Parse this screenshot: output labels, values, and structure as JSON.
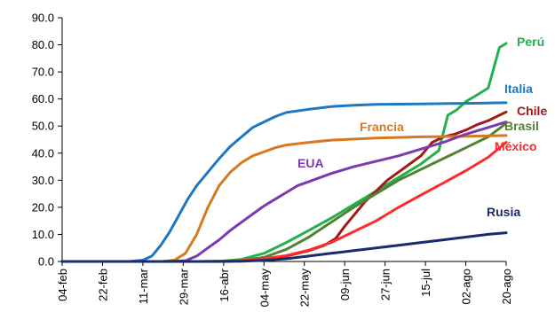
{
  "chart_data": {
    "type": "line",
    "title": "",
    "xlabel": "",
    "ylabel": "",
    "ylim": [
      0,
      90
    ],
    "yticks": [
      "0.0",
      "10.0",
      "20.0",
      "30.0",
      "40.0",
      "50.0",
      "60.0",
      "70.0",
      "80.0",
      "90.0"
    ],
    "x_tick_labels": [
      "04-feb",
      "22-feb",
      "11-mar",
      "29-mar",
      "16-abr",
      "04-may",
      "22-may",
      "09-jun",
      "27-jun",
      "15-jul",
      "02-ago",
      "20-ago"
    ],
    "x_days": [
      0,
      18,
      36,
      54,
      72,
      90,
      108,
      126,
      144,
      162,
      180,
      198
    ],
    "grid": false,
    "legend": "direct labels at line ends",
    "series": [
      {
        "name": "Perú",
        "color": "#22b14c",
        "label_color": "#22b14c",
        "points": [
          [
            0,
            0
          ],
          [
            60,
            0
          ],
          [
            72,
            0.2
          ],
          [
            80,
            0.8
          ],
          [
            90,
            3
          ],
          [
            100,
            7
          ],
          [
            110,
            11.5
          ],
          [
            120,
            16
          ],
          [
            130,
            21
          ],
          [
            140,
            26
          ],
          [
            150,
            31
          ],
          [
            160,
            36
          ],
          [
            168,
            41
          ],
          [
            172,
            54
          ],
          [
            176,
            56
          ],
          [
            180,
            59
          ],
          [
            185,
            61.5
          ],
          [
            190,
            64
          ],
          [
            195,
            79
          ],
          [
            198,
            80.5
          ]
        ]
      },
      {
        "name": "Italia",
        "color": "#1f77c0",
        "label_color": "#1f77c0",
        "points": [
          [
            0,
            0
          ],
          [
            30,
            0
          ],
          [
            36,
            0.5
          ],
          [
            40,
            2
          ],
          [
            44,
            6
          ],
          [
            48,
            11
          ],
          [
            52,
            17
          ],
          [
            56,
            23
          ],
          [
            60,
            28
          ],
          [
            65,
            33
          ],
          [
            70,
            38
          ],
          [
            75,
            42.5
          ],
          [
            80,
            46
          ],
          [
            85,
            49.5
          ],
          [
            90,
            51.5
          ],
          [
            95,
            53.5
          ],
          [
            100,
            55
          ],
          [
            110,
            56.2
          ],
          [
            120,
            57.2
          ],
          [
            130,
            57.7
          ],
          [
            140,
            58
          ],
          [
            160,
            58.2
          ],
          [
            180,
            58.4
          ],
          [
            198,
            58.6
          ]
        ]
      },
      {
        "name": "Chile",
        "color": "#a11a1a",
        "label_color": "#a11a1a",
        "points": [
          [
            0,
            0
          ],
          [
            70,
            0
          ],
          [
            80,
            0.2
          ],
          [
            90,
            0.8
          ],
          [
            100,
            2
          ],
          [
            110,
            4
          ],
          [
            117,
            6
          ],
          [
            122,
            8.5
          ],
          [
            126,
            13
          ],
          [
            130,
            17
          ],
          [
            135,
            22
          ],
          [
            140,
            26
          ],
          [
            145,
            30
          ],
          [
            150,
            33
          ],
          [
            155,
            36
          ],
          [
            160,
            39
          ],
          [
            165,
            44
          ],
          [
            170,
            46
          ],
          [
            175,
            47
          ],
          [
            180,
            48.5
          ],
          [
            185,
            50.5
          ],
          [
            190,
            52
          ],
          [
            198,
            55.2
          ]
        ]
      },
      {
        "name": "Brasil",
        "color": "#548235",
        "label_color": "#548235",
        "points": [
          [
            0,
            0
          ],
          [
            70,
            0
          ],
          [
            80,
            0.3
          ],
          [
            90,
            1.5
          ],
          [
            100,
            4.5
          ],
          [
            110,
            9
          ],
          [
            120,
            14.5
          ],
          [
            130,
            20
          ],
          [
            140,
            25
          ],
          [
            150,
            30
          ],
          [
            160,
            34
          ],
          [
            170,
            38
          ],
          [
            180,
            42
          ],
          [
            190,
            46
          ],
          [
            198,
            51
          ]
        ]
      },
      {
        "name": "Francia",
        "color": "#d67a1f",
        "label_color": "#d67a1f",
        "points": [
          [
            0,
            0
          ],
          [
            45,
            0
          ],
          [
            50,
            0.5
          ],
          [
            55,
            3
          ],
          [
            60,
            10
          ],
          [
            65,
            20
          ],
          [
            70,
            28
          ],
          [
            75,
            33
          ],
          [
            80,
            36.5
          ],
          [
            85,
            39
          ],
          [
            90,
            40.5
          ],
          [
            95,
            42
          ],
          [
            100,
            43
          ],
          [
            110,
            44
          ],
          [
            120,
            44.8
          ],
          [
            140,
            45.6
          ],
          [
            160,
            46
          ],
          [
            180,
            46.2
          ],
          [
            198,
            46.5
          ]
        ]
      },
      {
        "name": "México",
        "color": "#ff2a2a",
        "label_color": "#ff2a2a",
        "points": [
          [
            0,
            0
          ],
          [
            70,
            0
          ],
          [
            80,
            0.3
          ],
          [
            90,
            1
          ],
          [
            100,
            2.2
          ],
          [
            110,
            4.2
          ],
          [
            120,
            7
          ],
          [
            130,
            11
          ],
          [
            140,
            15
          ],
          [
            150,
            20
          ],
          [
            160,
            24.5
          ],
          [
            170,
            29
          ],
          [
            180,
            33.5
          ],
          [
            190,
            38.5
          ],
          [
            198,
            44
          ]
        ]
      },
      {
        "name": "EUA",
        "color": "#7b3bb0",
        "label_color": "#7b3bb0",
        "points": [
          [
            0,
            0
          ],
          [
            45,
            0
          ],
          [
            55,
            0.3
          ],
          [
            60,
            2
          ],
          [
            65,
            5
          ],
          [
            70,
            8
          ],
          [
            75,
            11.5
          ],
          [
            80,
            14.5
          ],
          [
            85,
            17.5
          ],
          [
            90,
            20.5
          ],
          [
            95,
            23
          ],
          [
            100,
            25.5
          ],
          [
            105,
            28
          ],
          [
            110,
            29.5
          ],
          [
            120,
            32.5
          ],
          [
            130,
            35
          ],
          [
            140,
            37
          ],
          [
            150,
            39
          ],
          [
            160,
            41.5
          ],
          [
            170,
            44
          ],
          [
            180,
            47
          ],
          [
            190,
            49.5
          ],
          [
            198,
            51.5
          ]
        ]
      },
      {
        "name": "Rusia",
        "color": "#1a2a6c",
        "label_color": "#1a2a6c",
        "points": [
          [
            0,
            0
          ],
          [
            70,
            0
          ],
          [
            80,
            0.1
          ],
          [
            90,
            0.4
          ],
          [
            100,
            1
          ],
          [
            110,
            2
          ],
          [
            120,
            3
          ],
          [
            130,
            4
          ],
          [
            140,
            5
          ],
          [
            150,
            6
          ],
          [
            160,
            7
          ],
          [
            170,
            8
          ],
          [
            180,
            9
          ],
          [
            190,
            10
          ],
          [
            198,
            10.6
          ]
        ]
      }
    ]
  }
}
